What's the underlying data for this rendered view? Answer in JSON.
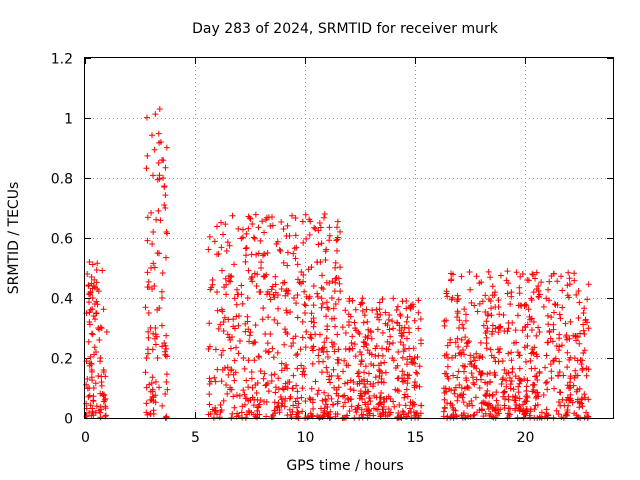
{
  "chart_data": {
    "type": "scatter",
    "title": "Day 283 of 2024, SRMTID for receiver murk",
    "xlabel": "GPS time / hours",
    "ylabel": "SRMTID / TECUs",
    "xlim": [
      0,
      24
    ],
    "ylim": [
      0,
      1.2
    ],
    "xticks": [
      0,
      5,
      10,
      15,
      20
    ],
    "yticks": [
      0,
      0.2,
      0.4,
      0.6,
      0.8,
      1,
      1.2
    ],
    "ytick_labels": [
      "0",
      "0.2",
      "0.4",
      "0.6",
      "0.8",
      "1",
      "1.2"
    ],
    "grid": true,
    "color": "#ff0000",
    "marker": "plus",
    "activity_segments": [
      {
        "start": 0.05,
        "end": 1.0,
        "max": 0.52
      },
      {
        "start": 2.75,
        "end": 3.75,
        "max": 1.03
      },
      {
        "start": 5.6,
        "end": 11.6,
        "max": 0.68
      },
      {
        "start": 11.7,
        "end": 15.3,
        "max": 0.4
      },
      {
        "start": 16.3,
        "end": 22.9,
        "max": 0.49
      }
    ],
    "series": [
      {
        "name": "SRMTID",
        "points": [
          [
            0.1,
            0.48
          ],
          [
            0.15,
            0.44
          ],
          [
            0.2,
            0.52
          ],
          [
            0.25,
            0.42
          ],
          [
            0.3,
            0.47
          ],
          [
            0.35,
            0.4
          ],
          [
            0.4,
            0.44
          ],
          [
            0.45,
            0.38
          ],
          [
            0.5,
            0.35
          ],
          [
            0.55,
            0.43
          ],
          [
            0.6,
            0.3
          ],
          [
            0.65,
            0.26
          ],
          [
            0.7,
            0.2
          ],
          [
            0.75,
            0.12
          ],
          [
            0.8,
            0.08
          ],
          [
            0.85,
            0.16
          ],
          [
            0.9,
            0.06
          ],
          [
            0.2,
            0.32
          ],
          [
            0.3,
            0.18
          ],
          [
            0.4,
            0.1
          ],
          [
            0.5,
            0.22
          ],
          [
            0.6,
            0.14
          ],
          [
            2.8,
            0.2
          ],
          [
            2.9,
            0.35
          ],
          [
            3.0,
            0.5
          ],
          [
            3.05,
            0.58
          ],
          [
            3.1,
            0.62
          ],
          [
            3.15,
            0.44
          ],
          [
            3.2,
            0.3
          ],
          [
            3.3,
            0.55
          ],
          [
            3.35,
            0.85
          ],
          [
            3.4,
            1.03
          ],
          [
            3.45,
            0.92
          ],
          [
            3.5,
            0.86
          ],
          [
            3.55,
            0.8
          ],
          [
            3.6,
            0.71
          ],
          [
            3.65,
            0.7
          ],
          [
            3.7,
            0.62
          ],
          [
            3.3,
            0.2
          ],
          [
            3.5,
            0.4
          ],
          [
            3.6,
            0.25
          ],
          [
            3.7,
            0.12
          ],
          [
            5.8,
            0.46
          ],
          [
            6.0,
            0.42
          ],
          [
            6.3,
            0.32
          ],
          [
            6.6,
            0.26
          ],
          [
            7.0,
            0.34
          ],
          [
            7.4,
            0.4
          ],
          [
            7.8,
            0.44
          ],
          [
            8.0,
            0.5
          ],
          [
            8.3,
            0.55
          ],
          [
            8.5,
            0.67
          ],
          [
            8.7,
            0.58
          ],
          [
            9.0,
            0.45
          ],
          [
            9.5,
            0.4
          ],
          [
            10.0,
            0.35
          ],
          [
            10.4,
            0.44
          ],
          [
            10.7,
            0.52
          ],
          [
            10.9,
            0.68
          ],
          [
            11.1,
            0.45
          ],
          [
            11.4,
            0.38
          ],
          [
            9.2,
            0.28
          ],
          [
            7.2,
            0.2
          ],
          [
            12.0,
            0.32
          ],
          [
            12.5,
            0.22
          ],
          [
            13.0,
            0.18
          ],
          [
            13.5,
            0.15
          ],
          [
            14.0,
            0.25
          ],
          [
            14.4,
            0.3
          ],
          [
            14.6,
            0.39
          ],
          [
            15.0,
            0.12
          ],
          [
            16.5,
            0.2
          ],
          [
            17.0,
            0.3
          ],
          [
            17.5,
            0.18
          ],
          [
            18.0,
            0.15
          ],
          [
            18.5,
            0.28
          ],
          [
            18.8,
            0.37
          ],
          [
            19.5,
            0.25
          ],
          [
            19.9,
            0.48
          ],
          [
            20.4,
            0.32
          ],
          [
            20.6,
            0.44
          ],
          [
            21.0,
            0.12
          ],
          [
            21.5,
            0.14
          ],
          [
            22.0,
            0.1
          ],
          [
            22.6,
            0.16
          ]
        ]
      }
    ]
  }
}
